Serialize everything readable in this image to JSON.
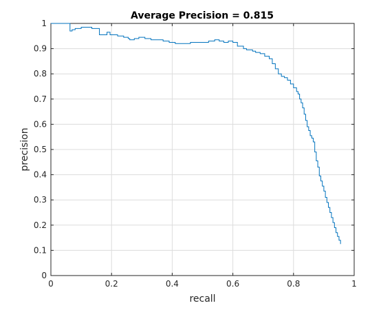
{
  "chart_data": {
    "type": "line",
    "title": "Average Precision = 0.815",
    "xlabel": "recall",
    "ylabel": "precision",
    "xlim": [
      0,
      1
    ],
    "ylim": [
      0,
      1
    ],
    "xticks": [
      "0",
      "0.2",
      "0.4",
      "0.6",
      "0.8",
      "1"
    ],
    "yticks": [
      "0",
      "0.1",
      "0.2",
      "0.3",
      "0.4",
      "0.5",
      "0.6",
      "0.7",
      "0.8",
      "0.9",
      "1"
    ],
    "grid": true,
    "line_color": "#0072BD",
    "series": [
      {
        "step": true,
        "x": [
          0.0,
          0.063,
          0.063,
          0.07,
          0.08,
          0.1,
          0.135,
          0.135,
          0.16,
          0.16,
          0.185,
          0.185,
          0.195,
          0.22,
          0.24,
          0.255,
          0.26,
          0.275,
          0.29,
          0.31,
          0.33,
          0.35,
          0.37,
          0.39,
          0.4,
          0.41,
          0.42,
          0.44,
          0.46,
          0.48,
          0.5,
          0.52,
          0.54,
          0.555,
          0.57,
          0.585,
          0.6,
          0.615,
          0.625,
          0.635,
          0.645,
          0.655,
          0.665,
          0.675,
          0.69,
          0.705,
          0.72,
          0.73,
          0.74,
          0.75,
          0.76,
          0.77,
          0.78,
          0.79,
          0.8,
          0.81,
          0.815,
          0.82,
          0.825,
          0.83,
          0.835,
          0.84,
          0.845,
          0.85,
          0.855,
          0.86,
          0.865,
          0.87,
          0.875,
          0.88,
          0.885,
          0.89,
          0.895,
          0.9,
          0.905,
          0.91,
          0.915,
          0.92,
          0.925,
          0.93,
          0.935,
          0.94,
          0.945,
          0.95,
          0.955
        ],
        "y": [
          1.0,
          1.0,
          0.97,
          0.975,
          0.98,
          0.985,
          0.985,
          0.98,
          0.98,
          0.955,
          0.955,
          0.965,
          0.955,
          0.95,
          0.945,
          0.94,
          0.935,
          0.94,
          0.945,
          0.94,
          0.935,
          0.935,
          0.93,
          0.925,
          0.925,
          0.92,
          0.92,
          0.92,
          0.925,
          0.925,
          0.925,
          0.93,
          0.935,
          0.93,
          0.925,
          0.93,
          0.925,
          0.91,
          0.91,
          0.9,
          0.895,
          0.895,
          0.89,
          0.885,
          0.88,
          0.87,
          0.86,
          0.84,
          0.82,
          0.8,
          0.79,
          0.785,
          0.775,
          0.76,
          0.745,
          0.73,
          0.72,
          0.7,
          0.685,
          0.665,
          0.64,
          0.615,
          0.59,
          0.575,
          0.555,
          0.545,
          0.53,
          0.49,
          0.455,
          0.43,
          0.395,
          0.375,
          0.355,
          0.335,
          0.31,
          0.29,
          0.27,
          0.25,
          0.23,
          0.21,
          0.19,
          0.17,
          0.155,
          0.14,
          0.125
        ]
      }
    ]
  }
}
